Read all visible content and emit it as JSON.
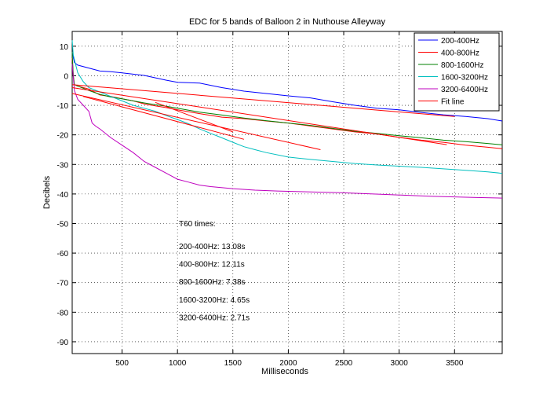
{
  "chart_data": {
    "type": "line",
    "title": "EDC for 5 bands of Balloon 2 in Nuthouse Alleyway",
    "xlabel": "Milliseconds",
    "ylabel": "Decibels",
    "xlim": [
      50,
      3930
    ],
    "ylim": [
      -94,
      15
    ],
    "grid": true,
    "x_ticks": [
      500,
      1000,
      1500,
      2000,
      2500,
      3000,
      3500
    ],
    "y_ticks": [
      10,
      0,
      -10,
      -20,
      -30,
      -40,
      -50,
      -60,
      -70,
      -80,
      -90
    ],
    "legend_position": "top-right",
    "series": [
      {
        "name": "200-400Hz",
        "color": "#0000ff",
        "points": [
          [
            50,
            8
          ],
          [
            70,
            4.5
          ],
          [
            100,
            3.6
          ],
          [
            200,
            2.6
          ],
          [
            300,
            1.6
          ],
          [
            400,
            1.4
          ],
          [
            500,
            1.0
          ],
          [
            700,
            0.1
          ],
          [
            900,
            -1.5
          ],
          [
            1000,
            -2.2
          ],
          [
            1200,
            -2.5
          ],
          [
            1400,
            -4.0
          ],
          [
            1600,
            -5.2
          ],
          [
            1800,
            -6.0
          ],
          [
            2000,
            -6.8
          ],
          [
            2200,
            -7.5
          ],
          [
            2400,
            -8.8
          ],
          [
            2600,
            -10.0
          ],
          [
            2800,
            -11.0
          ],
          [
            3000,
            -11.5
          ],
          [
            3200,
            -12.4
          ],
          [
            3400,
            -13.2
          ],
          [
            3600,
            -13.8
          ],
          [
            3800,
            -14.5
          ],
          [
            3930,
            -15.3
          ]
        ]
      },
      {
        "name": "400-800Hz",
        "color": "#ff0000",
        "points": [
          [
            50,
            6
          ],
          [
            60,
            0
          ],
          [
            70,
            -3
          ],
          [
            100,
            -3.5
          ],
          [
            200,
            -4.5
          ],
          [
            300,
            -6.5
          ],
          [
            400,
            -7.0
          ],
          [
            500,
            -7.8
          ],
          [
            600,
            -8.5
          ],
          [
            700,
            -9.5
          ],
          [
            800,
            -10.2
          ],
          [
            900,
            -10.8
          ],
          [
            1000,
            -11.5
          ],
          [
            1200,
            -12.8
          ],
          [
            1400,
            -14.0
          ],
          [
            1600,
            -14.5
          ],
          [
            1800,
            -15.3
          ],
          [
            2000,
            -16.0
          ],
          [
            2200,
            -17.0
          ],
          [
            2400,
            -18.0
          ],
          [
            2600,
            -19.0
          ],
          [
            2800,
            -19.7
          ],
          [
            3000,
            -20.8
          ],
          [
            3200,
            -21.8
          ],
          [
            3400,
            -22.5
          ],
          [
            3600,
            -23.5
          ],
          [
            3800,
            -24.2
          ],
          [
            3930,
            -24.7
          ]
        ]
      },
      {
        "name": "800-1600Hz",
        "color": "#008000",
        "points": [
          [
            50,
            8
          ],
          [
            60,
            0
          ],
          [
            70,
            -3
          ],
          [
            100,
            -3.5
          ],
          [
            200,
            -5.0
          ],
          [
            300,
            -6.3
          ],
          [
            400,
            -7.2
          ],
          [
            500,
            -7.8
          ],
          [
            600,
            -8.5
          ],
          [
            700,
            -9.2
          ],
          [
            800,
            -9.8
          ],
          [
            900,
            -10.3
          ],
          [
            1000,
            -11.0
          ],
          [
            1200,
            -12.3
          ],
          [
            1400,
            -13.3
          ],
          [
            1600,
            -14.3
          ],
          [
            1800,
            -15.2
          ],
          [
            2000,
            -16.0
          ],
          [
            2200,
            -16.8
          ],
          [
            2400,
            -17.8
          ],
          [
            2600,
            -18.8
          ],
          [
            2800,
            -19.5
          ],
          [
            3000,
            -20.3
          ],
          [
            3200,
            -21.0
          ],
          [
            3400,
            -21.8
          ],
          [
            3600,
            -22.3
          ],
          [
            3800,
            -22.9
          ],
          [
            3930,
            -23.4
          ]
        ]
      },
      {
        "name": "1600-3200Hz",
        "color": "#00bfbf",
        "points": [
          [
            50,
            12
          ],
          [
            60,
            7
          ],
          [
            80,
            4
          ],
          [
            100,
            1
          ],
          [
            150,
            -2
          ],
          [
            200,
            -4
          ],
          [
            300,
            -5.5
          ],
          [
            400,
            -7
          ],
          [
            500,
            -8.5
          ],
          [
            600,
            -10
          ],
          [
            700,
            -11
          ],
          [
            800,
            -12
          ],
          [
            900,
            -13.5
          ],
          [
            1000,
            -14.8
          ],
          [
            1100,
            -16.2
          ],
          [
            1200,
            -18
          ],
          [
            1300,
            -19.5
          ],
          [
            1400,
            -21
          ],
          [
            1500,
            -22.5
          ],
          [
            1600,
            -24
          ],
          [
            1700,
            -25
          ],
          [
            1800,
            -26
          ],
          [
            2000,
            -27.5
          ],
          [
            2200,
            -28.3
          ],
          [
            2400,
            -29.0
          ],
          [
            2600,
            -29.7
          ],
          [
            2800,
            -30.2
          ],
          [
            3000,
            -30.6
          ],
          [
            3200,
            -31.0
          ],
          [
            3400,
            -31.5
          ],
          [
            3600,
            -32.0
          ],
          [
            3800,
            -32.5
          ],
          [
            3930,
            -33.0
          ]
        ]
      },
      {
        "name": "3200-6400Hz",
        "color": "#bf00bf",
        "points": [
          [
            50,
            4
          ],
          [
            70,
            -5
          ],
          [
            100,
            -8
          ],
          [
            150,
            -10
          ],
          [
            200,
            -12
          ],
          [
            230,
            -16
          ],
          [
            260,
            -17
          ],
          [
            300,
            -18
          ],
          [
            400,
            -21
          ],
          [
            500,
            -23.5
          ],
          [
            600,
            -26
          ],
          [
            700,
            -29
          ],
          [
            800,
            -31
          ],
          [
            900,
            -33
          ],
          [
            1000,
            -35
          ],
          [
            1100,
            -36
          ],
          [
            1200,
            -37
          ],
          [
            1300,
            -37.5
          ],
          [
            1500,
            -38.2
          ],
          [
            1700,
            -38.7
          ],
          [
            1900,
            -39
          ],
          [
            2100,
            -39.2
          ],
          [
            2300,
            -39.4
          ],
          [
            2500,
            -39.6
          ],
          [
            2700,
            -39.9
          ],
          [
            2900,
            -40.2
          ],
          [
            3100,
            -40.5
          ],
          [
            3300,
            -40.8
          ],
          [
            3500,
            -41
          ],
          [
            3700,
            -41.2
          ],
          [
            3930,
            -41.4
          ]
        ]
      },
      {
        "name": "Fit line",
        "color": "#ff0000",
        "points": [
          [
            50,
            -3
          ],
          [
            3500,
            -13.8
          ]
        ]
      },
      {
        "name": "Fit line 400-800Hz",
        "color": "#ff0000",
        "legend": false,
        "points": [
          [
            50,
            -4
          ],
          [
            3430,
            -23.3
          ]
        ]
      },
      {
        "name": "Fit line 800-1600Hz",
        "color": "#ff0000",
        "legend": false,
        "points": [
          [
            50,
            -6
          ],
          [
            2290,
            -25
          ]
        ]
      },
      {
        "name": "Fit line 1600-3200Hz",
        "color": "#ff0000",
        "legend": false,
        "points": [
          [
            150,
            -7
          ],
          [
            1600,
            -21.5
          ]
        ]
      },
      {
        "name": "Fit line 3200-6400Hz",
        "color": "#ff0000",
        "legend": false,
        "points": [
          [
            800,
            -9
          ],
          [
            1500,
            -19
          ]
        ]
      }
    ],
    "annotations": {
      "heading": "T60 times:",
      "lines": [
        "200-400Hz: 13.08s",
        "400-800Hz: 12.11s",
        "800-1600Hz: 7.38s",
        "1600-3200Hz: 4.65s",
        "3200-6400Hz: 2.71s"
      ]
    }
  }
}
